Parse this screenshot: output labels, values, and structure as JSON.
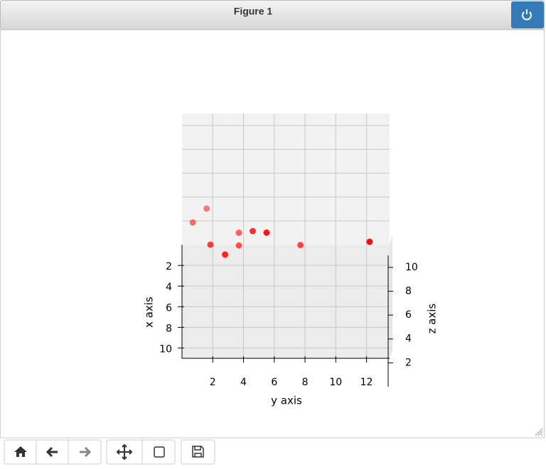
{
  "window": {
    "title": "Figure 1"
  },
  "chart_data": {
    "type": "scatter3d",
    "xlabel": "x axis",
    "ylabel": "y axis",
    "zlabel": "z axis",
    "xlim": [
      0,
      11
    ],
    "ylim": [
      0,
      13.5
    ],
    "zlim": [
      0,
      11
    ],
    "xticks": [
      2,
      4,
      6,
      8,
      10
    ],
    "yticks": [
      2,
      4,
      6,
      8,
      10,
      12
    ],
    "zticks": [
      2,
      4,
      6,
      8,
      10
    ],
    "grid": true,
    "color": "#ff0000",
    "x": [
      2,
      1,
      6,
      8,
      3,
      4,
      7,
      9,
      5,
      10
    ],
    "y": [
      0.7,
      1.6,
      1.85,
      2.8,
      3.7,
      3.7,
      4.6,
      5.5,
      7.7,
      12.2
    ],
    "z": [
      3.6,
      3.9,
      5.2,
      6.1,
      3.6,
      3.4,
      7.2,
      8.8,
      4.3,
      8.9
    ]
  }
}
